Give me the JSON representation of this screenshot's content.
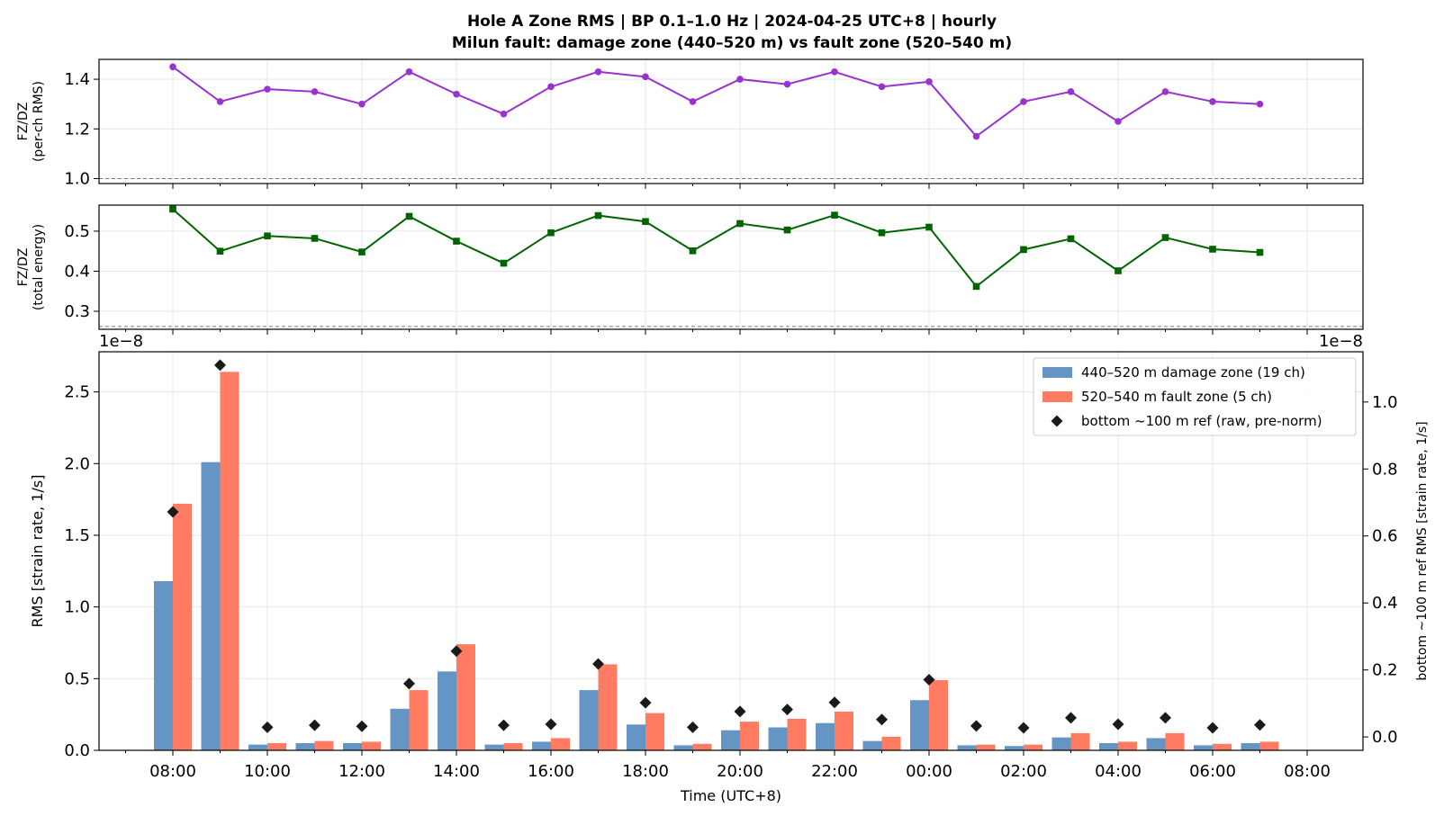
{
  "title": {
    "line1": "Hole A Zone RMS  |  BP 0.1–1.0 Hz  |  2024-04-25 UTC+8  |  hourly",
    "line2": "Milun fault: damage zone (440–520 m) vs fault zone (520–540 m)"
  },
  "colors": {
    "ratio_rms": "#9a32cd",
    "ratio_energy": "#006400",
    "damage_zone": "#6495c4",
    "fault_zone": "#ff7b62",
    "reference": "#1a1a1a",
    "grid": "#e6e6e6"
  },
  "chart_data": [
    {
      "type": "line",
      "xlabel": "",
      "ylabel": "FZ/DZ",
      "ylabel2": "(per-ch RMS)",
      "ylim": [
        0.98,
        1.48
      ],
      "yticks": [
        "1.0",
        "1.2",
        "1.4"
      ],
      "grid": true,
      "reference_line": 1.0,
      "x": [
        "08:00",
        "09:00",
        "10:00",
        "11:00",
        "12:00",
        "13:00",
        "14:00",
        "15:00",
        "16:00",
        "17:00",
        "18:00",
        "19:00",
        "20:00",
        "21:00",
        "22:00",
        "23:00",
        "00:00",
        "01:00",
        "02:00",
        "03:00",
        "04:00",
        "05:00",
        "06:00",
        "07:00"
      ],
      "series": [
        {
          "values": [
            1.45,
            1.31,
            1.36,
            1.35,
            1.3,
            1.43,
            1.34,
            1.26,
            1.37,
            1.43,
            1.41,
            1.31,
            1.4,
            1.38,
            1.43,
            1.37,
            1.39,
            1.17,
            1.31,
            1.35,
            1.23,
            1.35,
            1.31,
            1.3
          ]
        }
      ]
    },
    {
      "type": "line",
      "xlabel": "",
      "ylabel": "FZ/DZ",
      "ylabel2": "(total energy)",
      "ylim": [
        0.255,
        0.565
      ],
      "yticks": [
        "0.3",
        "0.4",
        "0.5"
      ],
      "grid": true,
      "reference_line": 0.262,
      "x": [
        "08:00",
        "09:00",
        "10:00",
        "11:00",
        "12:00",
        "13:00",
        "14:00",
        "15:00",
        "16:00",
        "17:00",
        "18:00",
        "19:00",
        "20:00",
        "21:00",
        "22:00",
        "23:00",
        "00:00",
        "01:00",
        "02:00",
        "03:00",
        "04:00",
        "05:00",
        "06:00",
        "07:00"
      ],
      "series": [
        {
          "values": [
            0.555,
            0.45,
            0.488,
            0.482,
            0.448,
            0.537,
            0.475,
            0.42,
            0.496,
            0.539,
            0.524,
            0.451,
            0.519,
            0.503,
            0.54,
            0.496,
            0.51,
            0.362,
            0.454,
            0.481,
            0.401,
            0.484,
            0.455,
            0.447
          ]
        }
      ]
    },
    {
      "type": "bar",
      "xlabel": "Time (UTC+8)",
      "ylabel": "RMS  [strain rate, 1/s]",
      "ylabel_right": "bottom ~100 m ref RMS  [strain rate, 1/s]",
      "offset_text_left": "1e−8",
      "offset_text_right": "1e−8",
      "ylim": [
        0,
        2.78
      ],
      "ylim_right": [
        -0.04,
        1.15
      ],
      "yticks": [
        "0.0",
        "0.5",
        "1.0",
        "1.5",
        "2.0",
        "2.5"
      ],
      "yticks_right": [
        "0.0",
        "0.2",
        "0.4",
        "0.6",
        "0.8",
        "1.0"
      ],
      "xticks": [
        "08:00",
        "10:00",
        "12:00",
        "14:00",
        "16:00",
        "18:00",
        "20:00",
        "22:00",
        "00:00",
        "02:00",
        "04:00",
        "06:00",
        "08:00"
      ],
      "grid": true,
      "legend_position": "top-right",
      "categories": [
        "08:00",
        "09:00",
        "10:00",
        "11:00",
        "12:00",
        "13:00",
        "14:00",
        "15:00",
        "16:00",
        "17:00",
        "18:00",
        "19:00",
        "20:00",
        "21:00",
        "22:00",
        "23:00",
        "00:00",
        "01:00",
        "02:00",
        "03:00",
        "04:00",
        "05:00",
        "06:00",
        "07:00"
      ],
      "series": [
        {
          "name": "440–520 m  damage zone (19 ch)",
          "kind": "bar",
          "values": [
            1.18,
            2.01,
            0.04,
            0.05,
            0.05,
            0.29,
            0.55,
            0.04,
            0.06,
            0.42,
            0.18,
            0.035,
            0.14,
            0.16,
            0.19,
            0.065,
            0.35,
            0.035,
            0.03,
            0.09,
            0.05,
            0.085,
            0.035,
            0.05
          ]
        },
        {
          "name": "520–540 m  fault zone (5 ch)",
          "kind": "bar",
          "values": [
            1.72,
            2.64,
            0.05,
            0.065,
            0.06,
            0.42,
            0.74,
            0.05,
            0.085,
            0.6,
            0.26,
            0.045,
            0.2,
            0.22,
            0.27,
            0.095,
            0.49,
            0.04,
            0.04,
            0.12,
            0.06,
            0.12,
            0.045,
            0.06
          ]
        },
        {
          "name": "bottom ~100 m ref (raw, pre-norm)",
          "kind": "marker",
          "axis": "right",
          "values": [
            0.672,
            1.11,
            0.029,
            0.035,
            0.032,
            0.159,
            0.256,
            0.035,
            0.038,
            0.218,
            0.102,
            0.029,
            0.076,
            0.082,
            0.103,
            0.052,
            0.171,
            0.033,
            0.027,
            0.057,
            0.038,
            0.057,
            0.027,
            0.036
          ]
        }
      ]
    }
  ]
}
